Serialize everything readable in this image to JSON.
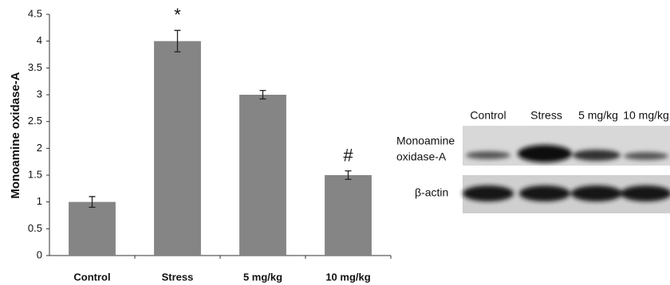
{
  "chart_data": {
    "type": "bar",
    "y_label": "Monoamine oxidase-A",
    "categories": [
      "Control",
      "Stress",
      "5 mg/kg",
      "10 mg/kg"
    ],
    "values": [
      1.0,
      4.0,
      3.0,
      1.5
    ],
    "errors": [
      0.1,
      0.2,
      0.08,
      0.08
    ],
    "bar_labels": [
      null,
      "*",
      null,
      "#"
    ],
    "color": "#858585",
    "ylim": [
      0,
      4.5
    ],
    "yticks": [
      0,
      0.5,
      1,
      1.5,
      2,
      2.5,
      3,
      3.5,
      4,
      4.5
    ]
  },
  "blot": {
    "columns": [
      "Control",
      "Stress",
      "5 mg/kg",
      "10 mg/kg"
    ],
    "rows": [
      [
        "Monoamine",
        "oxidase-A"
      ],
      [
        "β-actin"
      ]
    ]
  }
}
